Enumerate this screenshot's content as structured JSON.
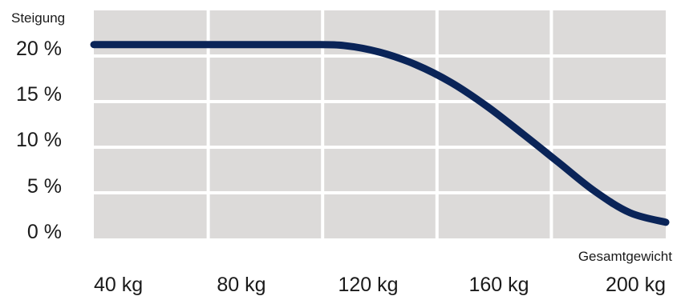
{
  "chart_data": {
    "type": "line",
    "ylabel": "Steigung",
    "xlabel": "Gesamtgewicht",
    "x_ticks": [
      "40 kg",
      "80 kg",
      "120 kg",
      "160 kg",
      "200 kg"
    ],
    "y_ticks": [
      "0 %",
      "5 %",
      "10 %",
      "15 %",
      "20 %"
    ],
    "xlim": [
      40,
      200
    ],
    "ylim": [
      0,
      24
    ],
    "grid": true,
    "colors": {
      "background": "#dcdad9",
      "grid": "#ffffff",
      "line": "#0a2458"
    },
    "series": [
      {
        "x": [
          40,
          60,
          80,
          100,
          110,
          120,
          130,
          140,
          150,
          160,
          170,
          180,
          190,
          200
        ],
        "y": [
          20.4,
          20.4,
          20.4,
          20.4,
          20.3,
          19.6,
          18.3,
          16.4,
          13.9,
          11.0,
          8.0,
          5.0,
          2.7,
          1.7
        ]
      }
    ]
  }
}
